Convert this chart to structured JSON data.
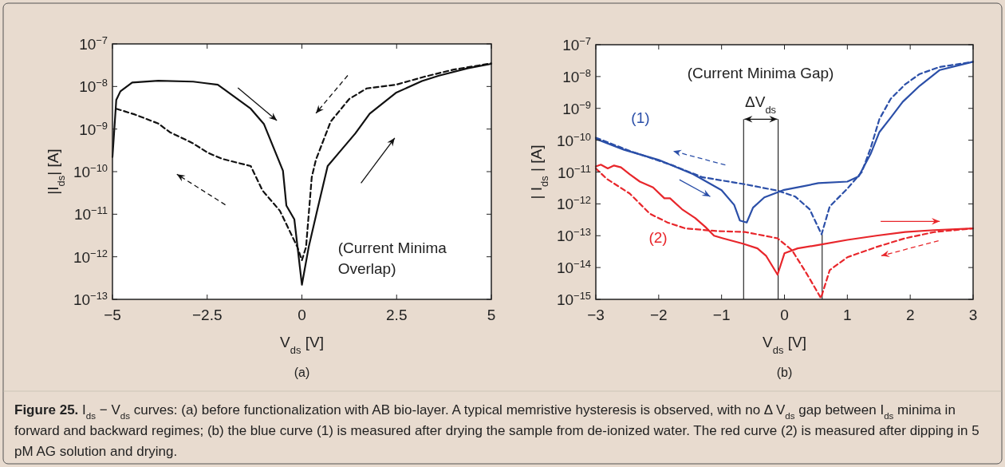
{
  "chart_data": [
    {
      "type": "line",
      "title": "(a)",
      "xlabel": "V$_{ds}$ [V]",
      "ylabel": "|I$_{ds}$| [A]",
      "log": "y",
      "xlim": [
        -5,
        5
      ],
      "xticks": [
        {
          "value": -5,
          "label": "−5"
        },
        {
          "value": -2.5,
          "label": "−2.5"
        },
        0,
        2.5,
        5
      ],
      "ylim": [
        1e-13,
        1e-07
      ],
      "yticks": [
        {
          "value": 1e-13,
          "label": "10$^{−13}$"
        },
        {
          "value": 1e-12,
          "label": "10$^{−12}$"
        },
        {
          "value": 1e-11,
          "label": "10$^{−11}$"
        },
        {
          "value": 1e-10,
          "label": "10$^{−10}$"
        },
        {
          "value": 1e-09,
          "label": "10$^{−9}$"
        },
        {
          "value": 1e-08,
          "label": "10$^{−8}$"
        },
        {
          "value": 1e-07,
          "label": "10$^{−7}$"
        }
      ],
      "series": [
        {
          "color": "#111111",
          "line_style": "solid",
          "x": [
            -5,
            -4.9,
            -4.79,
            -4.48,
            -3.79,
            -2.87,
            -2.22,
            -2.03,
            -1.35,
            -1.0,
            -0.5,
            -0.41,
            -0.2,
            0,
            0.18,
            0.41,
            0.68,
            0.95,
            1.41,
            1.79,
            2.48,
            3.17,
            3.62,
            4.39,
            5
          ],
          "values": [
            2.2e-10,
            4.8e-09,
            7.7e-09,
            1.24e-08,
            1.37e-08,
            1.3e-08,
            1.1e-08,
            8.3e-09,
            3e-09,
            1.3e-09,
            1.05e-10,
            1.6e-11,
            7.6e-12,
            2.2e-13,
            1.7e-12,
            1.3e-11,
            1.35e-10,
            2.6e-10,
            7.9e-10,
            2.3e-09,
            7.1e-09,
            1.34e-08,
            1.8e-08,
            2.7e-08,
            3.4e-08
          ]
        },
        {
          "color": "#111111",
          "line_style": "dashed",
          "x": [
            -4.9,
            -4.41,
            -3.79,
            -3.49,
            -2.87,
            -2.49,
            -2.11,
            -1.35,
            -1.04,
            -0.58,
            -0.12,
            0,
            0.11,
            0.26,
            0.37,
            0.76,
            1.25,
            1.71,
            2.48,
            3.24,
            4.01,
            5
          ],
          "values": [
            3e-09,
            2.2e-09,
            1.35e-09,
            8.5e-10,
            4.6e-10,
            2.8e-10,
            2e-10,
            1.35e-10,
            3.6e-11,
            1.2e-11,
            1.7e-12,
            8.3e-13,
            1.7e-12,
            7.4e-11,
            1.9e-10,
            1.5e-09,
            5.1e-09,
            9e-09,
            1.1e-08,
            1.7e-08,
            2.5e-08,
            3.5e-08
          ]
        }
      ],
      "annotations": [
        "(Current Minima Overlap)"
      ]
    },
    {
      "type": "line",
      "title": "(b)",
      "xlabel": "V$_{ds}$ [V]",
      "ylabel": "| I$_{ds}$ | [A]",
      "log": "y",
      "xlim": [
        -3,
        3
      ],
      "xticks": [
        {
          "value": -3,
          "label": "−3"
        },
        {
          "value": -2,
          "label": "−2"
        },
        {
          "value": -1,
          "label": "−1"
        },
        0,
        1,
        2,
        3
      ],
      "ylim": [
        1e-15,
        1e-07
      ],
      "yticks": [
        {
          "value": 1e-15,
          "label": "10$^{−15}$"
        },
        {
          "value": 1e-14,
          "label": "10$^{−14}$"
        },
        {
          "value": 1e-13,
          "label": "10$^{−13}$"
        },
        {
          "value": 1e-12,
          "label": "10$^{−12}$"
        },
        {
          "value": 1e-11,
          "label": "10$^{−11}$"
        },
        {
          "value": 1e-10,
          "label": "10$^{−10}$"
        },
        {
          "value": 1e-09,
          "label": "10$^{−9}$"
        },
        {
          "value": 1e-08,
          "label": "10$^{−8}$"
        },
        {
          "value": 1e-07,
          "label": "10$^{−7}$"
        }
      ],
      "series": [
        {
          "color": "#2b4fa8",
          "line_style": "solid",
          "x": [
            -3,
            -2.55,
            -2.0,
            -1.45,
            -1.0,
            -0.8,
            -0.71,
            -0.6,
            -0.5,
            -0.32,
            -0.02,
            0.31,
            0.54,
            1.0,
            1.18,
            1.37,
            1.51,
            1.69,
            1.88,
            2.15,
            2.47,
            3
          ],
          "values": [
            1.1e-10,
            5e-11,
            2.4e-11,
            8.5e-12,
            2.7e-12,
            9.3e-13,
            3e-13,
            2.6e-13,
            7.6e-13,
            1.6e-12,
            2.7e-12,
            3.6e-12,
            4.5e-12,
            5e-12,
            7.3e-12,
            3.7e-11,
            1.8e-10,
            5.1e-10,
            1.6e-09,
            5.1e-09,
            1.6e-08,
            2.9e-08
          ]
        },
        {
          "color": "#2b4fa8",
          "line_style": "dashed",
          "x": [
            -3,
            -2.46,
            -1.77,
            -1.31,
            -0.62,
            -0.11,
            0.17,
            0.4,
            0.59,
            0.72,
            1.0,
            1.23,
            1.37,
            1.51,
            1.69,
            1.92,
            2.15,
            2.47,
            3
          ],
          "values": [
            1.2e-10,
            4.6e-11,
            1.6e-11,
            6.9e-12,
            4.1e-12,
            2.6e-12,
            1.7e-12,
            6.8e-13,
            1.1e-13,
            8.3e-13,
            3e-12,
            1e-11,
            5.6e-11,
            4.6e-10,
            2e-09,
            5.7e-09,
            1.2e-08,
            2e-08,
            2.9e-08
          ]
        },
        {
          "color": "#e8262b",
          "line_style": "solid",
          "x": [
            -3,
            -2.92,
            -2.81,
            -2.71,
            -2.6,
            -2.46,
            -2.3,
            -2.09,
            -1.91,
            -1.82,
            -1.63,
            -1.42,
            -1.26,
            -1.12,
            -0.98,
            -0.66,
            -0.43,
            -0.29,
            -0.11,
            0,
            0.21,
            0.54,
            1.0,
            1.46,
            1.92,
            2.38,
            3
          ],
          "values": [
            1.5e-11,
            1.7e-11,
            1.3e-11,
            1.6e-11,
            1.4e-11,
            8.5e-12,
            5e-12,
            3.3e-12,
            1.5e-12,
            1.5e-12,
            6.8e-13,
            3.6e-13,
            1.9e-13,
            1e-13,
            8.3e-14,
            5.6e-14,
            4e-14,
            2.3e-14,
            6e-15,
            2.8e-14,
            4e-14,
            5.1e-14,
            7.4e-14,
            1e-13,
            1.3e-13,
            1.5e-13,
            1.7e-13
          ]
        },
        {
          "color": "#e8262b",
          "line_style": "dashed",
          "x": [
            -3,
            -2.83,
            -2.46,
            -2.14,
            -1.86,
            -1.58,
            -1.08,
            -0.62,
            -0.11,
            0.12,
            0.35,
            0.58,
            0.72,
            1.0,
            1.46,
            1.92,
            2.38,
            3
          ],
          "values": [
            1.3e-11,
            6.2e-12,
            2.1e-12,
            4.9e-13,
            2.6e-13,
            1.7e-13,
            1.4e-13,
            1.3e-13,
            8.3e-14,
            3.5e-14,
            6.6e-15,
            1.1e-15,
            8.3e-15,
            2.1e-14,
            4.4e-14,
            8.3e-14,
            1.3e-13,
            1.7e-13
          ]
        }
      ],
      "ref_lines": [
        {
          "axis": "x",
          "value": -0.65,
          "color": "#000000"
        },
        {
          "axis": "x",
          "value": -0.1,
          "color": "#000000"
        },
        {
          "axis": "x",
          "value": 0.6,
          "color": "#000000"
        }
      ],
      "annotations": [
        "(Current Minima Gap)",
        "ΔV$_{ds}$",
        "(1)",
        "(2)",
        "Figure 25. I$_{ds}$ − V$_{ds}$ curves: (a) before functionalization with AB bio-layer. A typical memristive hysteresis is observed, with no Δ V$_{ds}$ gap between I$_{ds}$ minima in forward and backward regimes; (b) the blue curve (1) is measured after drying the sample from de-ionized water. The red curve (2) is measured after dipping in 5 pM AG solution and drying."
      ]
    }
  ]
}
